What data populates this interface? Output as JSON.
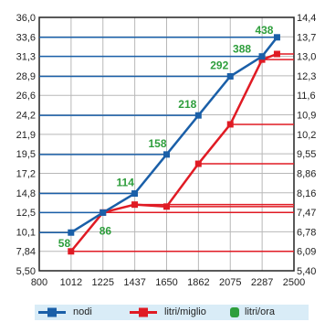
{
  "chart_data": {
    "type": "line",
    "x_ticks": [
      "800",
      "1012",
      "1225",
      "1437",
      "1650",
      "1862",
      "2075",
      "2287",
      "2500"
    ],
    "xlim": [
      800,
      2500
    ],
    "left_axis": {
      "ticks": [
        "36,0",
        "33,6",
        "31,3",
        "28,9",
        "26,6",
        "24,2",
        "21,9",
        "19,5",
        "17,2",
        "14,8",
        "12,5",
        "10,1",
        "7,84",
        "5,50"
      ],
      "lim": [
        5.5,
        36.0
      ]
    },
    "right_axis": {
      "ticks": [
        "14,4",
        "13,7",
        "13,0",
        "12,3",
        "11,6",
        "10,9",
        "10,2",
        "9,55",
        "8,86",
        "8,16",
        "7,47",
        "6,78",
        "6,09",
        "5,40"
      ],
      "lim": [
        5.4,
        14.4
      ]
    },
    "grid": true,
    "series": [
      {
        "name": "nodi",
        "color": "#1a5fa8",
        "axis": "left",
        "x": [
          1012,
          1225,
          1437,
          1650,
          1862,
          2075,
          2287,
          2387
        ],
        "y": [
          10.1,
          12.5,
          14.8,
          19.5,
          24.2,
          28.9,
          31.3,
          33.6
        ],
        "point_labels": [
          "58",
          "86",
          "114",
          "158",
          "218",
          "292",
          "388",
          "438"
        ]
      },
      {
        "name": "litri/miglio",
        "color": "#e01b24",
        "axis": "right",
        "x": [
          1012,
          1225,
          1437,
          1650,
          1862,
          2075,
          2287,
          2387
        ],
        "y": [
          6.09,
          7.47,
          7.75,
          7.68,
          9.2,
          10.6,
          12.9,
          13.1
        ]
      },
      {
        "name": "litri/ora",
        "color": "#2e9e3c"
      }
    ],
    "legend_position": "bottom"
  }
}
